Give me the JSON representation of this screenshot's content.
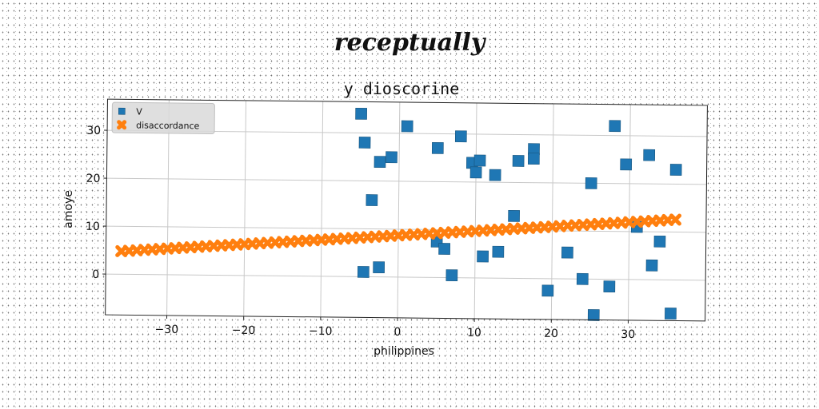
{
  "figure": {
    "title": "receptually"
  },
  "chart_data": {
    "type": "scatter",
    "title": "y dioscorine",
    "xlabel": "philippines",
    "ylabel": "amoye",
    "xlim": [
      -38,
      40
    ],
    "ylim": [
      -8.5,
      36.5
    ],
    "xticks": [
      -30,
      -20,
      -10,
      0,
      10,
      20,
      30
    ],
    "yticks": [
      0,
      10,
      20,
      30
    ],
    "xtick_labels": [
      "−30",
      "−20",
      "−10",
      "0",
      "10",
      "20",
      "30"
    ],
    "ytick_labels": [
      "0",
      "10",
      "20",
      "30"
    ],
    "grid": true,
    "legend_placement": "top-left",
    "series": [
      {
        "name": "V",
        "marker": "square",
        "color": "#1f77b4",
        "points": [
          [
            -5,
            34
          ],
          [
            -4.5,
            28
          ],
          [
            -3.5,
            16
          ],
          [
            -2.5,
            24
          ],
          [
            -1,
            25
          ],
          [
            1,
            31.5
          ],
          [
            5,
            27
          ],
          [
            8,
            29.5
          ],
          [
            9.5,
            24
          ],
          [
            10,
            22
          ],
          [
            10.5,
            24.5
          ],
          [
            12.5,
            21.5
          ],
          [
            15.5,
            24.5
          ],
          [
            17.5,
            27
          ],
          [
            17.5,
            25
          ],
          [
            25,
            20
          ],
          [
            28,
            32
          ],
          [
            29.5,
            24
          ],
          [
            32.5,
            26
          ],
          [
            36,
            23
          ],
          [
            15,
            13
          ],
          [
            -4.5,
            1
          ],
          [
            -2.5,
            2
          ],
          [
            5,
            7.5
          ],
          [
            6,
            6
          ],
          [
            7,
            0.5
          ],
          [
            11,
            4.5
          ],
          [
            13,
            5.5
          ],
          [
            19.5,
            -2.5
          ],
          [
            22,
            5.5
          ],
          [
            24,
            0
          ],
          [
            25.5,
            -7.5
          ],
          [
            27.5,
            -1.5
          ],
          [
            31,
            11
          ],
          [
            33,
            3
          ],
          [
            34,
            8
          ],
          [
            35.5,
            -7
          ]
        ]
      },
      {
        "name": "disaccordance",
        "marker": "x",
        "color": "#ff7f0e",
        "x_start": -36,
        "x_end": 36,
        "x_step": 1,
        "y_start": 4.8,
        "y_end": 12.6
      }
    ]
  }
}
